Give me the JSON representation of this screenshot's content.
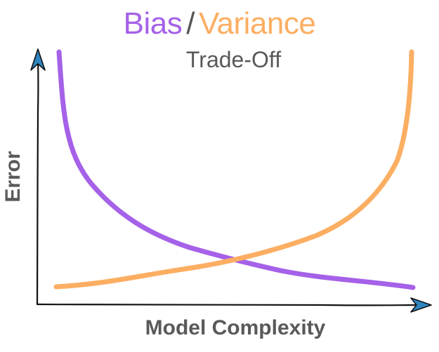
{
  "title": {
    "part1": "Bias",
    "separator": "/",
    "part2": "Variance",
    "color1": "#a561e8",
    "color2": "#fcae62"
  },
  "subtitle": "Trade-Off",
  "xlabel": "Model Complexity",
  "ylabel": "Error",
  "axis_color": "#111111",
  "arrow_color": "#2e86c1",
  "curves": [
    {
      "name": "bias",
      "color": "#a561e8",
      "trend": "decreasing"
    },
    {
      "name": "variance",
      "color": "#fcae62",
      "trend": "increasing"
    }
  ]
}
